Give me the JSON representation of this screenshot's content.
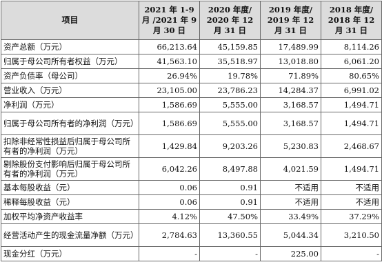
{
  "table": {
    "headers": [
      "项目",
      "2021 年 1-9 月 /2021 年 9 月 30 日",
      "2020 年度/ 2020 年 12 月 31 日",
      "2019 年度/ 2019 年 12 月 31 日",
      "2018 年度/ 2018 年 12 月 31 日"
    ],
    "rows": [
      {
        "label": "资产总额（万元）",
        "values": [
          "66,213.64",
          "45,159.85",
          "17,489.99",
          "8,114.26"
        ]
      },
      {
        "label": "归属于母公司所有者权益（万元）",
        "values": [
          "41,563.10",
          "35,518.97",
          "13,018.80",
          "6,061.20"
        ]
      },
      {
        "label": "资产负债率（母公司）",
        "values": [
          "26.94%",
          "19.78%",
          "71.89%",
          "80.65%"
        ]
      },
      {
        "label": "营业收入（万元）",
        "values": [
          "23,105.00",
          "23,786.23",
          "14,284.37",
          "6,991.02"
        ]
      },
      {
        "label": "净利润（万元）",
        "values": [
          "1,586.69",
          "5,555.00",
          "3,168.57",
          "1,494.71"
        ]
      },
      {
        "label": "归属于母公司所有者的净利润（万元）",
        "values": [
          "1,586.69",
          "5,555.00",
          "3,168.57",
          "1,494.71"
        ]
      },
      {
        "label": "扣除非经常性损益后归属于母公司所有者的净利润（万元）",
        "values": [
          "1,429.84",
          "9,203.26",
          "5,230.83",
          "2,468.67"
        ]
      },
      {
        "label": "剔除股份支付影响后归属于母公司所有者的净利润（万元）",
        "values": [
          "6,042.26",
          "8,497.88",
          "4,021.59",
          "1,494.71"
        ]
      },
      {
        "label": "基本每股收益（元）",
        "values": [
          "0.06",
          "0.91",
          "不适用",
          "不适用"
        ]
      },
      {
        "label": "稀释每股收益（元）",
        "values": [
          "0.06",
          "0.91",
          "不适用",
          "不适用"
        ]
      },
      {
        "label": "加权平均净资产收益率",
        "values": [
          "4.12%",
          "47.50%",
          "33.49%",
          "37.29%"
        ]
      },
      {
        "label": "经营活动产生的现金流量净额（万元）",
        "values": [
          "2,784.63",
          "13,360.55",
          "5,044.34",
          "3,210.50"
        ]
      },
      {
        "label": "现金分红（万元）",
        "values": [
          "-",
          "-",
          "225.00",
          "-"
        ]
      }
    ]
  }
}
